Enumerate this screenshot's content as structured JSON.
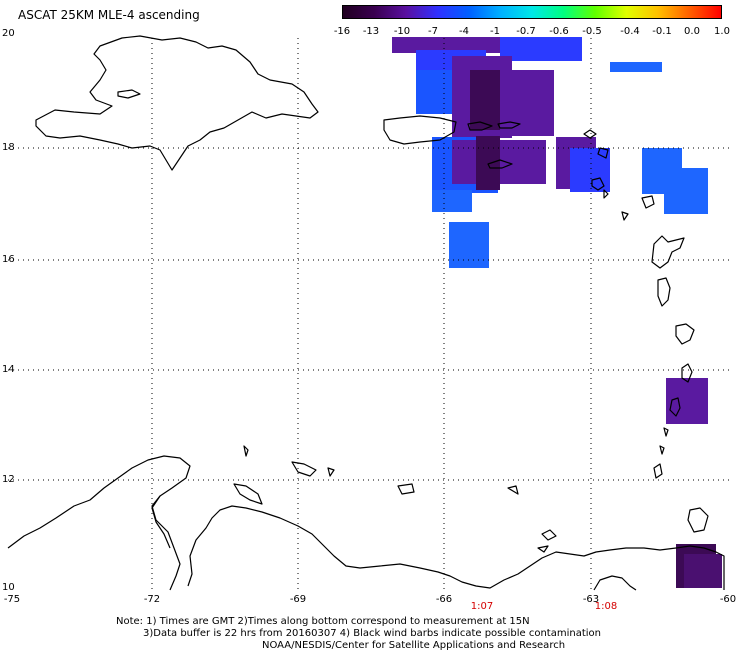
{
  "title": "ASCAT 25KM MLE-4 ascending",
  "colorbar": {
    "labels": [
      "-16",
      "-13",
      "-10",
      "-7",
      "-4",
      "-1",
      "-0.7",
      "-0.6",
      "-0.5",
      "-0.4",
      "-0.1",
      "0.0",
      "1.0"
    ],
    "gradient_colors": [
      "#200020",
      "#3a0050",
      "#5a10a0",
      "#3030ff",
      "#0060ff",
      "#00b0ff",
      "#00e8e8",
      "#00ff80",
      "#60ff00",
      "#e0ff00",
      "#ffc000",
      "#ff6000",
      "#ff0000"
    ]
  },
  "axes": {
    "lon_labels": [
      "-75",
      "-72",
      "-69",
      "-66",
      "-63",
      "-60"
    ],
    "lat_labels": [
      "20",
      "18",
      "16",
      "14",
      "12",
      "10"
    ]
  },
  "times": [
    "1:07",
    "1:08"
  ],
  "notes": [
    "Note: 1) Times are GMT 2)Times along bottom correspond to measurement at 15N",
    "3)Data buffer is 22 hrs from 20160307 4) Black wind barbs indicate possible contamination",
    "NOAA/NESDIS/Center for Satellite Applications and Research"
  ],
  "colors": {
    "purple": "#5a1aa0",
    "dark_purple": "#3c0a55",
    "blue": "#2b3bff",
    "medium_blue": "#1a55ff",
    "light_blue": "#1e66ff"
  }
}
